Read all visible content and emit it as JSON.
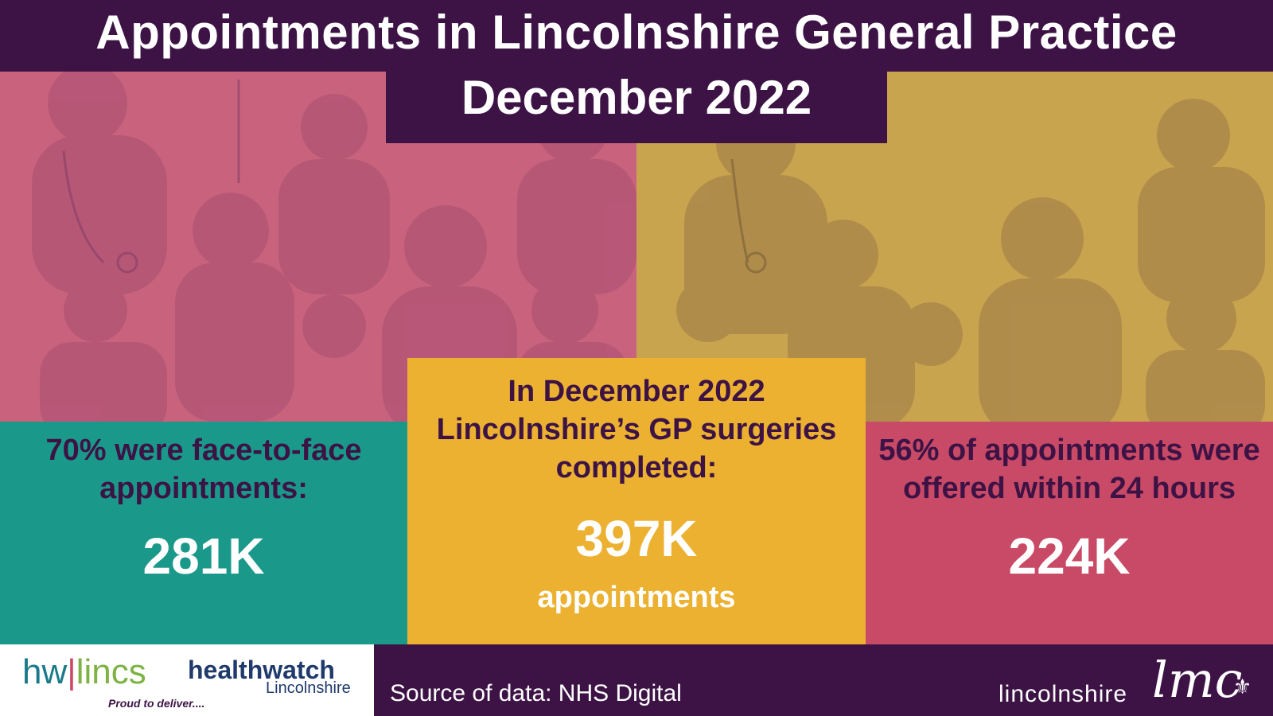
{
  "header": {
    "title": "Appointments in Lincolnshire General Practice",
    "subtitle": "December 2022"
  },
  "panels": {
    "left": {
      "lead": "70% were face-to-face appointments:",
      "value": "281K"
    },
    "middle": {
      "lead": "In December 2022 Lincolnshire’s GP surgeries completed:",
      "value": "397K",
      "unit": "appointments"
    },
    "right": {
      "lead": "56% of appointments were offered within 24 hours",
      "value": "224K"
    }
  },
  "footer": {
    "hw_logo_left": "hw",
    "hw_logo_divider": "|",
    "hw_logo_right": "lincs",
    "hw_tagline": "Proud to deliver....",
    "healthwatch_name": "healthwatch",
    "healthwatch_region": "Lincolnshire",
    "source": "Source of data: NHS Digital",
    "lmc_text": "lincolnshire",
    "lmc_mark": "lmc",
    "lmc_icon": "fleur-de-lis-icon"
  },
  "colors": {
    "header_bg": "#3d1346",
    "left_panel": "#1a998b",
    "middle_panel": "#ecb130",
    "right_panel": "#c94a66",
    "left_illustration": "#c9637d",
    "right_illustration": "#c9a44e",
    "lead_text": "#3d1346",
    "value_text": "#ffffff"
  }
}
